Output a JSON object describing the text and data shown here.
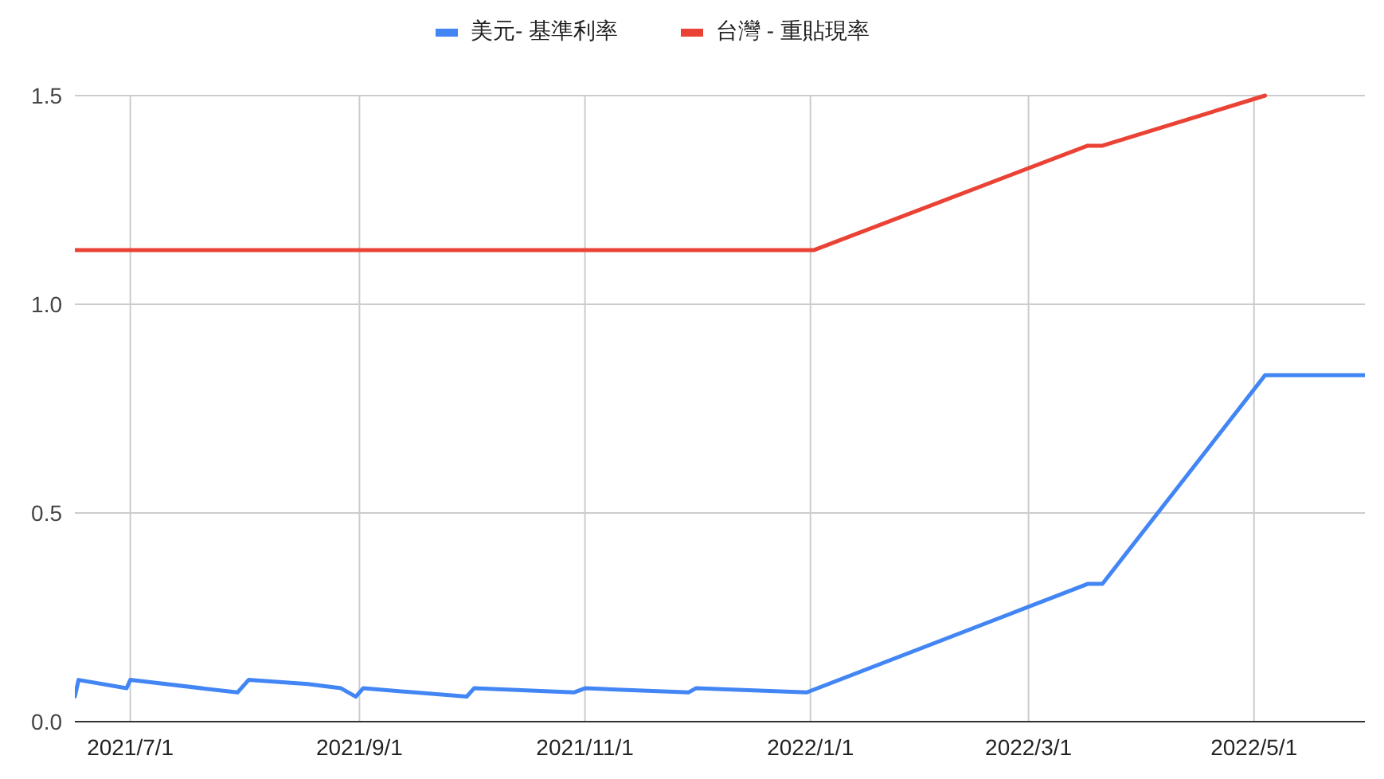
{
  "chart_data": {
    "type": "line",
    "xlim": [
      "2021-06-16",
      "2022-05-31"
    ],
    "xticks": [
      {
        "value": "2021-07-01",
        "label": "2021/7/1"
      },
      {
        "value": "2021-09-01",
        "label": "2021/9/1"
      },
      {
        "value": "2021-11-01",
        "label": "2021/11/1"
      },
      {
        "value": "2022-01-01",
        "label": "2022/1/1"
      },
      {
        "value": "2022-03-01",
        "label": "2022/3/1"
      },
      {
        "value": "2022-05-01",
        "label": "2022/5/1"
      }
    ],
    "ylim": [
      0,
      1.5
    ],
    "yticks": [
      {
        "value": 0,
        "label": "0.0"
      },
      {
        "value": 0.5,
        "label": "0.5"
      },
      {
        "value": 1,
        "label": "1.0"
      },
      {
        "value": 1.5,
        "label": "1.5"
      }
    ],
    "grid": true,
    "legend": "top",
    "series": [
      {
        "name": "美元- 基準利率",
        "color": "#4285f4",
        "x": [
          "2021-06-16",
          "2021-06-17",
          "2021-06-30",
          "2021-07-01",
          "2021-07-30",
          "2021-08-02",
          "2021-08-18",
          "2021-08-27",
          "2021-08-31",
          "2021-09-02",
          "2021-09-30",
          "2021-10-02",
          "2021-10-29",
          "2021-11-01",
          "2021-11-29",
          "2021-12-01",
          "2021-12-31",
          "2022-03-17",
          "2022-03-21",
          "2022-05-04",
          "2022-05-31"
        ],
        "values": [
          0.06,
          0.1,
          0.08,
          0.1,
          0.07,
          0.1,
          0.09,
          0.08,
          0.06,
          0.08,
          0.06,
          0.08,
          0.07,
          0.08,
          0.07,
          0.08,
          0.07,
          0.33,
          0.33,
          0.83,
          0.83
        ]
      },
      {
        "name": "台灣 - 重貼現率",
        "color": "#ea4335",
        "x": [
          "2021-06-16",
          "2022-01-02",
          "2022-03-17",
          "2022-03-21",
          "2022-05-04"
        ],
        "values": [
          1.13,
          1.13,
          1.38,
          1.38,
          1.5
        ]
      }
    ]
  }
}
